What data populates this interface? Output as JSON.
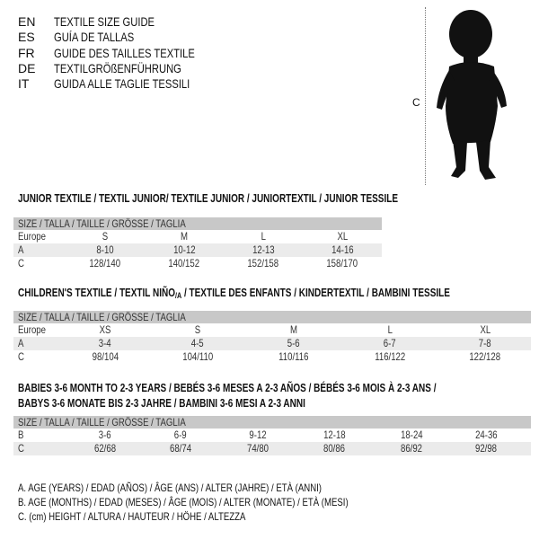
{
  "header": {
    "languages": [
      {
        "code": "EN",
        "text": "TEXTILE SIZE GUIDE"
      },
      {
        "code": "ES",
        "text": "GUÍA DE TALLAS"
      },
      {
        "code": "FR",
        "text": "GUIDE DES TAILLES TEXTILE"
      },
      {
        "code": "DE",
        "text": "TEXTILGRÖßENFÜHRUNG"
      },
      {
        "code": "IT",
        "text": "GUIDA ALLE TAGLIE TESSILI"
      }
    ],
    "figure_label": "C",
    "figure_icon": "baby-silhouette-icon"
  },
  "junior": {
    "title": "JUNIOR TEXTILE / TEXTIL JUNIOR/ TEXTILE JUNIOR / JUNIORTEXTIL / JUNIOR TESSILE",
    "size_header": "SIZE / TALLA / TAILLE / GRÖSSE / TAGLIA",
    "rows": [
      {
        "label": "Europe",
        "values": [
          "S",
          "M",
          "L",
          "XL"
        ]
      },
      {
        "label": "A",
        "values": [
          "8-10",
          "10-12",
          "12-13",
          "14-16"
        ]
      },
      {
        "label": "C",
        "values": [
          "128/140",
          "140/152",
          "152/158",
          "158/170"
        ]
      }
    ]
  },
  "children": {
    "title_pre": "CHILDREN'S TEXTILE / TEXTIL NIÑO",
    "title_sub": "/A",
    "title_post": " / TEXTILE DES ENFANTS / KINDERTEXTIL / BAMBINI TESSILE",
    "size_header": "SIZE / TALLA / TAILLE / GRÖSSE / TAGLIA",
    "rows": [
      {
        "label": "Europe",
        "values": [
          "XS",
          "S",
          "M",
          "L",
          "XL"
        ]
      },
      {
        "label": "A",
        "values": [
          "3-4",
          "4-5",
          "5-6",
          "6-7",
          "7-8"
        ]
      },
      {
        "label": "C",
        "values": [
          "98/104",
          "104/110",
          "110/116",
          "116/122",
          "122/128"
        ]
      }
    ]
  },
  "babies": {
    "title_line1": "BABIES 3-6 MONTH TO 2-3 YEARS / BEBÉS 3-6 MESES A 2-3 AÑOS / BÉBÉS 3-6 MOIS À 2-3 ANS /",
    "title_line2": "BABYS 3-6 MONATE BIS 2-3 JAHRE / BAMBINI 3-6 MESI A 2-3 ANNI",
    "size_header": "SIZE / TALLA / TAILLE / GRÖSSE / TAGLIA",
    "rows": [
      {
        "label": "B",
        "values": [
          "3-6",
          "6-9",
          "9-12",
          "12-18",
          "18-24",
          "24-36"
        ]
      },
      {
        "label": "C",
        "values": [
          "62/68",
          "68/74",
          "74/80",
          "80/86",
          "86/92",
          "92/98"
        ]
      }
    ]
  },
  "legend": [
    "A. AGE (YEARS) / EDAD (AÑOS) / ÂGE (ANS) / ALTER (JAHRE) / ETÀ (ANNI)",
    "B. AGE (MONTHS) / EDAD (MESES) / ÂGE (MOIS) / ALTER (MONATE) / ETÀ (MESI)",
    "C. (cm) HEIGHT / ALTURA / HAUTEUR / HÖHE / ALTEZZA"
  ]
}
